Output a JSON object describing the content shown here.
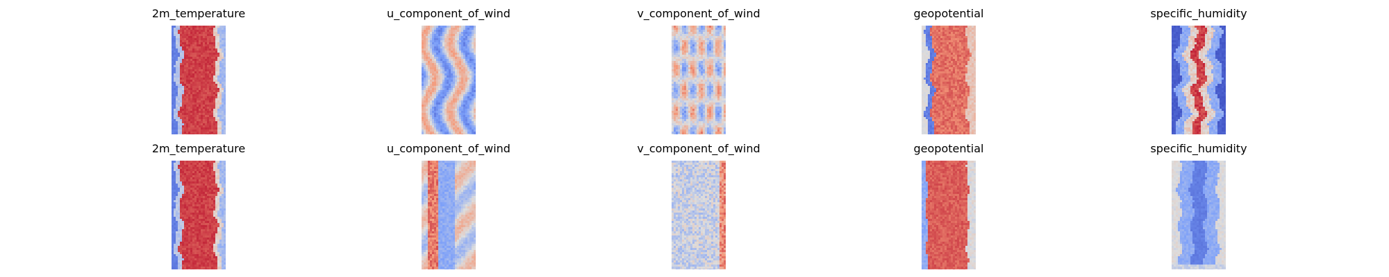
{
  "chart_data": {
    "type": "heatmap",
    "colormap": "coolwarm",
    "colors": {
      "cold": "#3b4cc0",
      "neutral": "#dddddd",
      "warm": "#b40426",
      "background": "#ffffff"
    },
    "rows": 2,
    "columns": 5,
    "axes_visible": false,
    "panels": [
      {
        "title": "2m_temperature",
        "row": 0,
        "col": 0,
        "pattern": "temperature",
        "seed": 11
      },
      {
        "title": "u_component_of_wind",
        "row": 0,
        "col": 1,
        "pattern": "uwind",
        "seed": 12
      },
      {
        "title": "v_component_of_wind",
        "row": 0,
        "col": 2,
        "pattern": "vwind",
        "seed": 13
      },
      {
        "title": "geopotential",
        "row": 0,
        "col": 3,
        "pattern": "geopotential",
        "seed": 14
      },
      {
        "title": "specific_humidity",
        "row": 0,
        "col": 4,
        "pattern": "humidity",
        "seed": 15
      },
      {
        "title": "2m_temperature",
        "row": 1,
        "col": 0,
        "pattern": "temperature",
        "seed": 21
      },
      {
        "title": "u_component_of_wind",
        "row": 1,
        "col": 1,
        "pattern": "uwind2",
        "seed": 22
      },
      {
        "title": "v_component_of_wind",
        "row": 1,
        "col": 2,
        "pattern": "vwind2",
        "seed": 23
      },
      {
        "title": "geopotential",
        "row": 1,
        "col": 3,
        "pattern": "geopotential2",
        "seed": 24
      },
      {
        "title": "specific_humidity",
        "row": 1,
        "col": 4,
        "pattern": "humidity2",
        "seed": 25
      }
    ]
  }
}
